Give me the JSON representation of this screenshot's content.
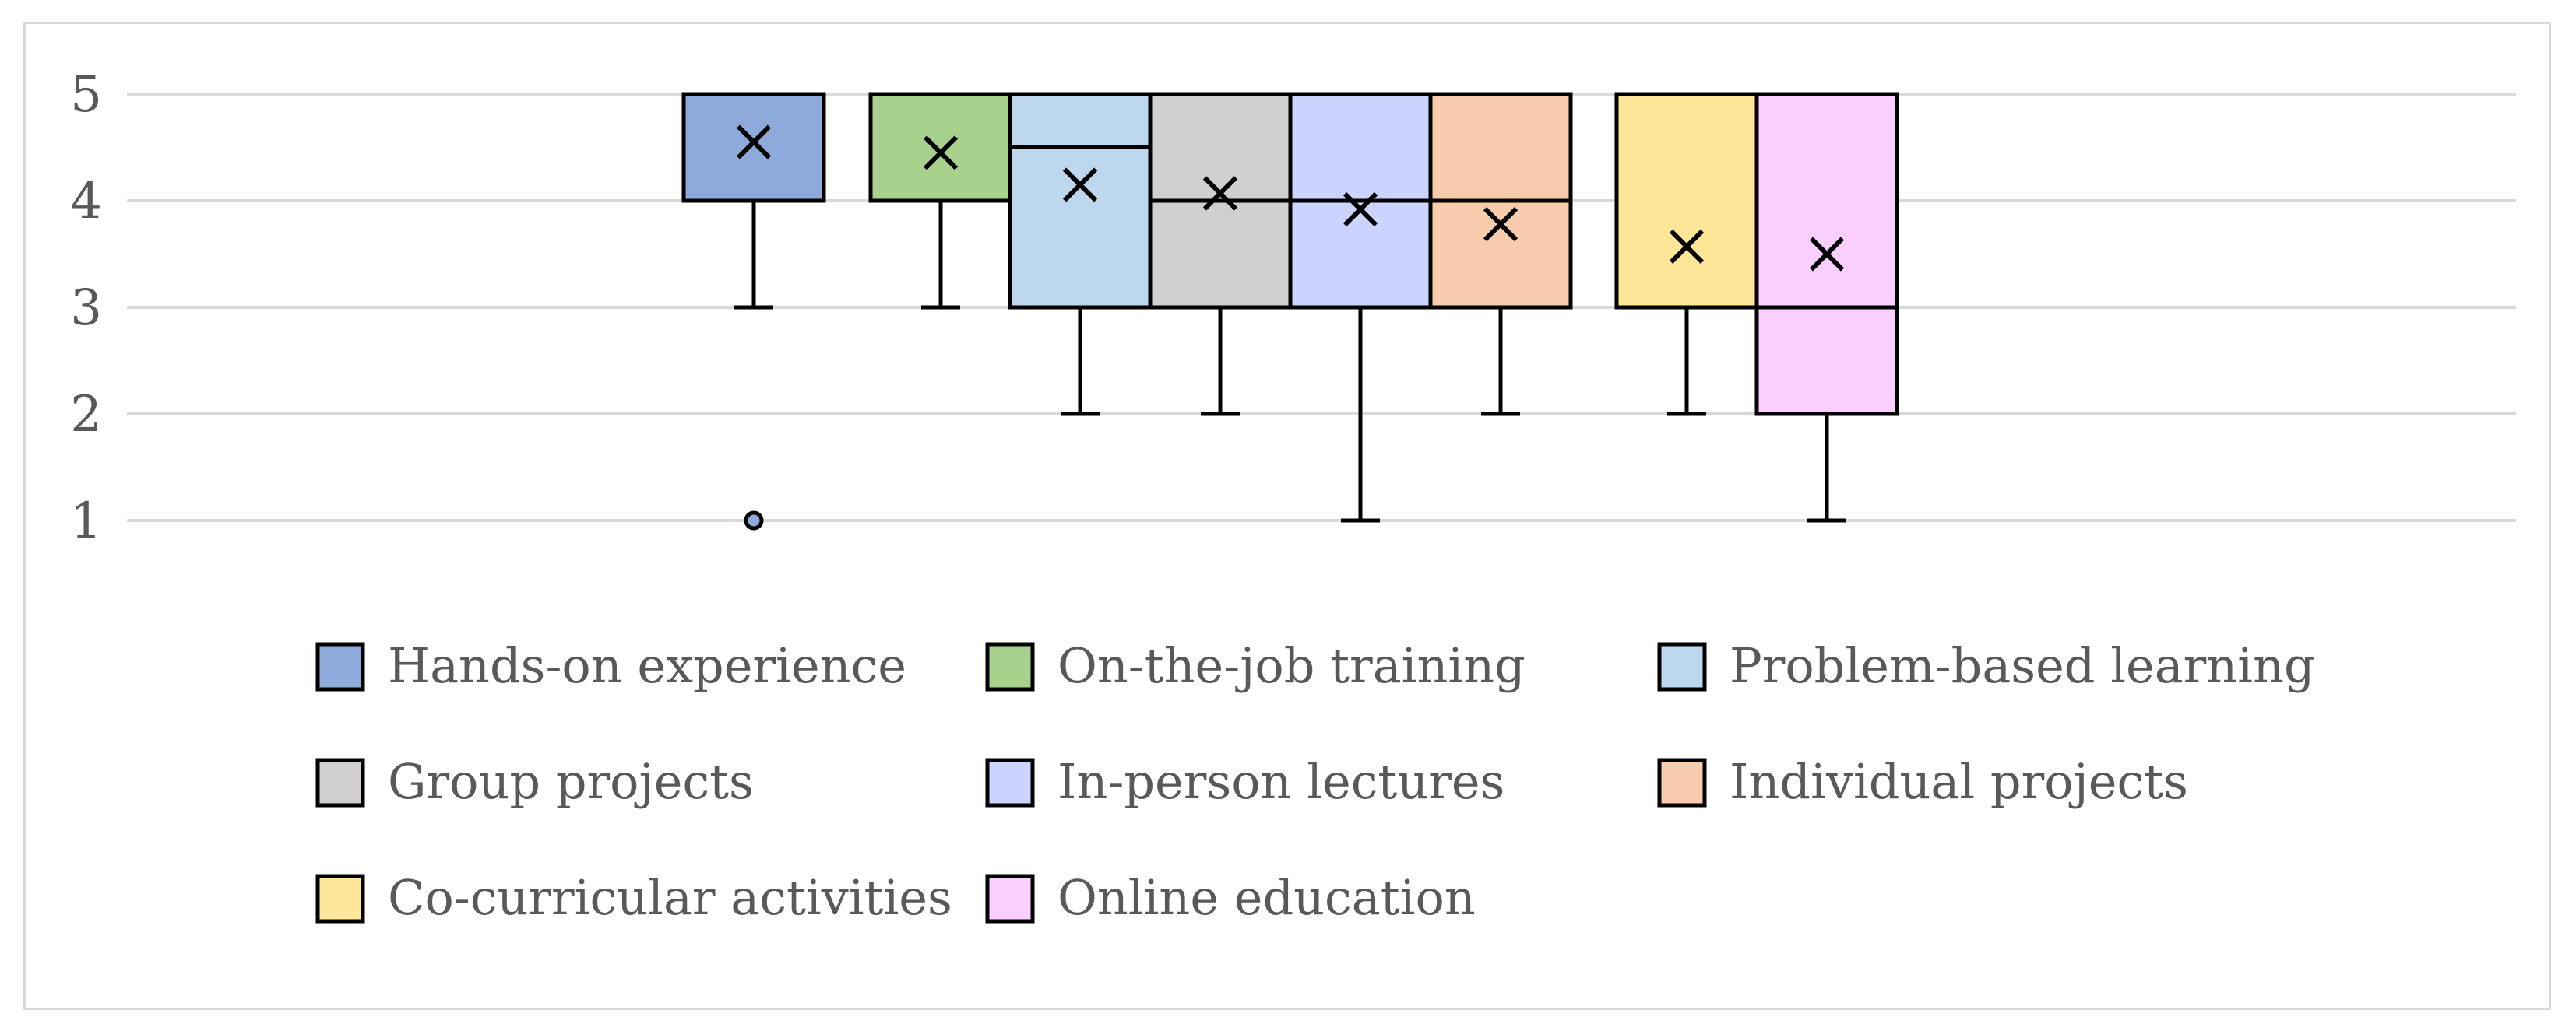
{
  "chart_data": {
    "type": "boxplot",
    "ylim": [
      1,
      5
    ],
    "yticks": [
      1,
      2,
      3,
      4,
      5
    ],
    "grid": true,
    "legend_position": "bottom",
    "series": [
      {
        "name": "Hands-on experience",
        "color": "#8eaadb",
        "min": 3,
        "q1": 4,
        "median": 5,
        "q3": 5,
        "max": 5,
        "mean": 4.55,
        "outliers": [
          1
        ]
      },
      {
        "name": "On-the-job training",
        "color": "#a9d18e",
        "min": 3,
        "q1": 4,
        "median": 5,
        "q3": 5,
        "max": 5,
        "mean": 4.45,
        "outliers": []
      },
      {
        "name": "Problem-based learning",
        "color": "#bdd7ee",
        "min": 2,
        "q1": 3,
        "median": 4.5,
        "q3": 5,
        "max": 5,
        "mean": 4.15,
        "outliers": []
      },
      {
        "name": "Group projects",
        "color": "#d0cece",
        "min": 2,
        "q1": 3,
        "median": 4,
        "q3": 5,
        "max": 5,
        "mean": 4.07,
        "outliers": []
      },
      {
        "name": "In-person lectures",
        "color": "#ccd3ff",
        "min": 1,
        "q1": 3,
        "median": 4,
        "q3": 5,
        "max": 5,
        "mean": 3.92,
        "outliers": []
      },
      {
        "name": "Individual projects",
        "color": "#f8cbad",
        "min": 2,
        "q1": 3,
        "median": 4,
        "q3": 5,
        "max": 5,
        "mean": 3.78,
        "outliers": []
      },
      {
        "name": "Co-curricular activities",
        "color": "#ffe699",
        "min": 2,
        "q1": 3,
        "median": 3,
        "q3": 5,
        "max": 5,
        "mean": 3.57,
        "outliers": []
      },
      {
        "name": "Online education",
        "color": "#facfff",
        "min": 1,
        "q1": 2,
        "median": 3,
        "q3": 5,
        "max": 5,
        "mean": 3.5,
        "outliers": []
      }
    ]
  }
}
